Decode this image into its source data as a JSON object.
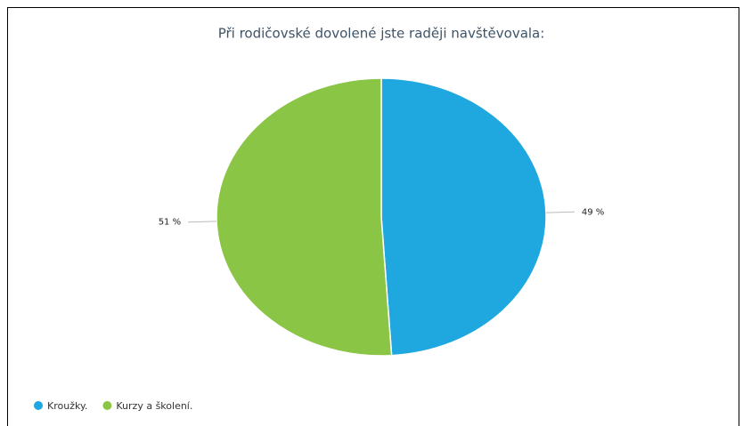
{
  "chart_data": {
    "type": "pie",
    "title": "Při rodičovské dovolené jste raději navštěvovala:",
    "categories": [
      "Kroužky.",
      "Kurzy a školení."
    ],
    "values": [
      49,
      51
    ],
    "value_labels": [
      "49 %",
      "51 %"
    ],
    "colors": [
      "#1fa8e0",
      "#8bc545"
    ],
    "legend": "bottom-left"
  }
}
